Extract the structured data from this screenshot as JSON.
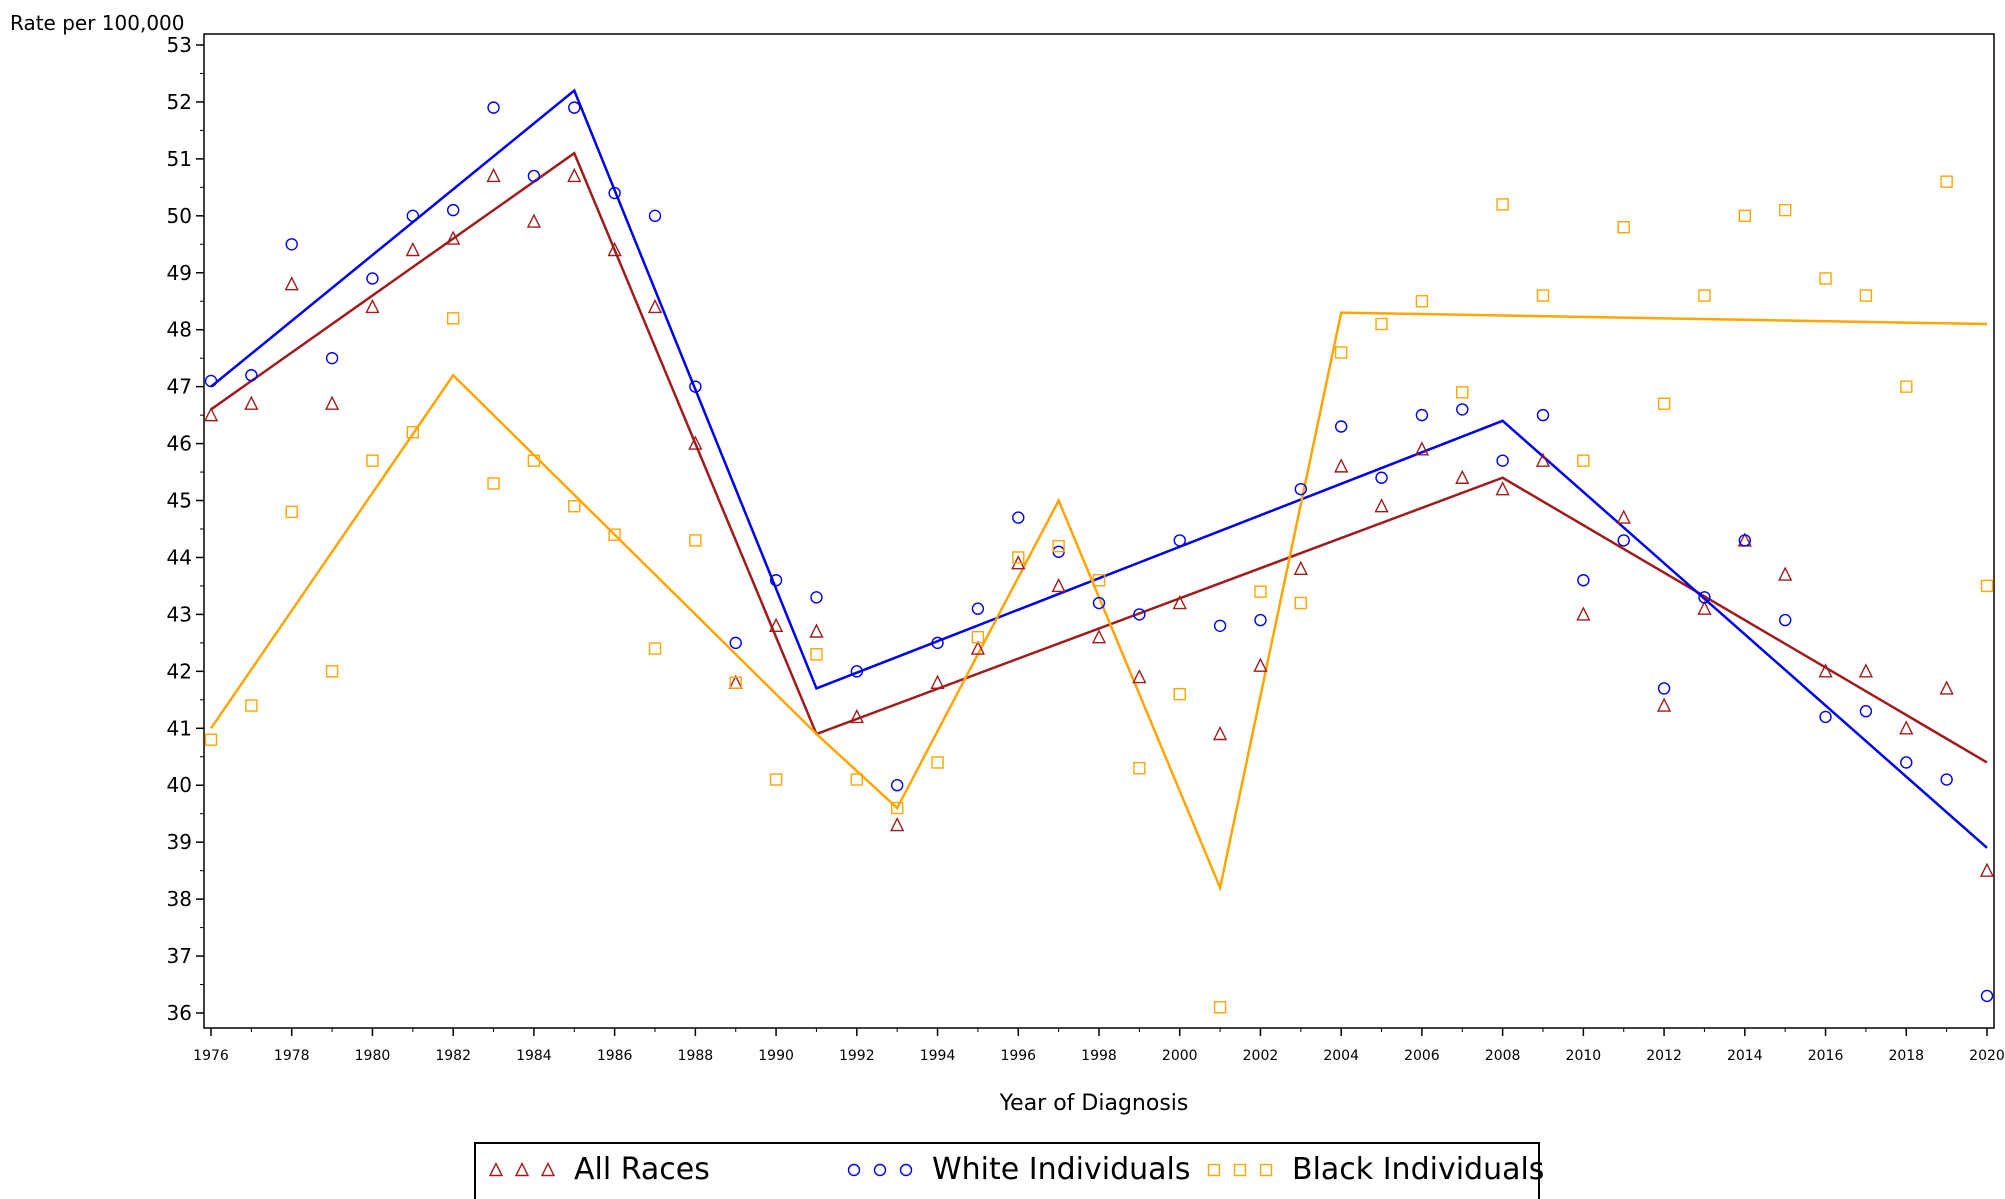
{
  "chart_data": {
    "type": "line",
    "title": "",
    "ylabel": "Rate per 100,000",
    "xlabel": "Year of Diagnosis",
    "xlim": [
      1976,
      2020
    ],
    "ylim": [
      36,
      53
    ],
    "xticks": [
      1976,
      1978,
      1980,
      1982,
      1984,
      1986,
      1988,
      1990,
      1992,
      1994,
      1996,
      1998,
      2000,
      2002,
      2004,
      2006,
      2008,
      2010,
      2012,
      2014,
      2016,
      2018,
      2020
    ],
    "yticks": [
      36,
      37,
      38,
      39,
      40,
      41,
      42,
      43,
      44,
      45,
      46,
      47,
      48,
      49,
      50,
      51,
      52,
      53
    ],
    "legend_position": "bottom",
    "series": [
      {
        "name": "All Races",
        "color": "#a01c1c",
        "marker": "triangle",
        "x": [
          1976,
          1977,
          1978,
          1979,
          1980,
          1981,
          1982,
          1983,
          1984,
          1985,
          1986,
          1987,
          1988,
          1989,
          1990,
          1991,
          1992,
          1993,
          1994,
          1995,
          1996,
          1997,
          1998,
          1999,
          2000,
          2001,
          2002,
          2003,
          2004,
          2005,
          2006,
          2007,
          2008,
          2009,
          2010,
          2011,
          2012,
          2013,
          2014,
          2015,
          2016,
          2017,
          2018,
          2019,
          2020
        ],
        "observed": [
          46.5,
          46.7,
          48.8,
          46.7,
          48.4,
          49.4,
          49.6,
          50.7,
          49.9,
          50.7,
          49.4,
          48.4,
          46.0,
          41.8,
          42.8,
          42.7,
          41.2,
          39.3,
          41.8,
          42.4,
          43.9,
          43.5,
          42.6,
          41.9,
          43.2,
          40.9,
          42.1,
          43.8,
          45.6,
          44.9,
          45.9,
          45.4,
          45.2,
          45.7,
          43.0,
          44.7,
          41.4,
          43.1,
          44.3,
          43.7,
          42.0,
          42.0,
          41.0,
          41.7,
          38.5
        ],
        "trend": [
          {
            "x": 1976,
            "y": 46.6
          },
          {
            "x": 1985,
            "y": 51.1
          },
          {
            "x": 1991,
            "y": 40.9
          },
          {
            "x": 2008,
            "y": 45.4
          },
          {
            "x": 2020,
            "y": 40.4
          }
        ]
      },
      {
        "name": "White Individuals",
        "color": "#0000ee",
        "marker": "circle",
        "x": [
          1976,
          1977,
          1978,
          1979,
          1980,
          1981,
          1982,
          1983,
          1984,
          1985,
          1986,
          1987,
          1988,
          1989,
          1990,
          1991,
          1992,
          1993,
          1994,
          1995,
          1996,
          1997,
          1998,
          1999,
          2000,
          2001,
          2002,
          2003,
          2004,
          2005,
          2006,
          2007,
          2008,
          2009,
          2010,
          2011,
          2012,
          2013,
          2014,
          2015,
          2016,
          2017,
          2018,
          2019,
          2020
        ],
        "observed": [
          47.1,
          47.2,
          49.5,
          47.5,
          48.9,
          50.0,
          50.1,
          51.9,
          50.7,
          51.9,
          50.4,
          50.0,
          47.0,
          42.5,
          43.6,
          43.3,
          42.0,
          40.0,
          42.5,
          43.1,
          44.7,
          44.1,
          43.2,
          43.0,
          44.3,
          42.8,
          42.9,
          45.2,
          46.3,
          45.4,
          46.5,
          46.6,
          45.7,
          46.5,
          43.6,
          44.3,
          41.7,
          43.3,
          44.3,
          42.9,
          41.2,
          41.3,
          40.4,
          40.1,
          36.3
        ],
        "trend": [
          {
            "x": 1976,
            "y": 47.0
          },
          {
            "x": 1985,
            "y": 52.2
          },
          {
            "x": 1991,
            "y": 41.7
          },
          {
            "x": 2008,
            "y": 46.4
          },
          {
            "x": 2020,
            "y": 38.9
          }
        ]
      },
      {
        "name": "Black Individuals",
        "color": "#ffa500",
        "marker": "square",
        "x": [
          1976,
          1977,
          1978,
          1979,
          1980,
          1981,
          1982,
          1983,
          1984,
          1985,
          1986,
          1987,
          1988,
          1989,
          1990,
          1991,
          1992,
          1993,
          1994,
          1995,
          1996,
          1997,
          1998,
          1999,
          2000,
          2001,
          2002,
          2003,
          2004,
          2005,
          2006,
          2007,
          2008,
          2009,
          2010,
          2011,
          2012,
          2013,
          2014,
          2015,
          2016,
          2017,
          2018,
          2019,
          2020
        ],
        "observed": [
          40.8,
          41.4,
          44.8,
          42.0,
          45.7,
          46.2,
          48.2,
          45.3,
          45.7,
          44.9,
          44.4,
          42.4,
          44.3,
          41.8,
          40.1,
          42.3,
          40.1,
          39.6,
          40.4,
          42.6,
          44.0,
          44.2,
          43.6,
          40.3,
          41.6,
          36.1,
          43.4,
          43.2,
          47.6,
          48.1,
          48.5,
          46.9,
          50.2,
          48.6,
          45.7,
          49.8,
          46.7,
          48.6,
          50.0,
          50.1,
          48.9,
          48.6,
          47.0,
          50.6,
          43.5
        ],
        "trend": [
          {
            "x": 1976,
            "y": 41.0
          },
          {
            "x": 1982,
            "y": 47.2
          },
          {
            "x": 1991,
            "y": 40.9
          },
          {
            "x": 1993,
            "y": 39.6
          },
          {
            "x": 1997,
            "y": 45.0
          },
          {
            "x": 2001,
            "y": 38.2
          },
          {
            "x": 2004,
            "y": 48.3
          },
          {
            "x": 2020,
            "y": 48.1
          }
        ]
      }
    ]
  },
  "legend": [
    {
      "label": "All Races",
      "marker": "triangle",
      "color": "#a01c1c"
    },
    {
      "label": "White Individuals",
      "marker": "circle",
      "color": "#0000ee"
    },
    {
      "label": "Black Individuals",
      "marker": "square",
      "color": "#ffa500"
    }
  ]
}
